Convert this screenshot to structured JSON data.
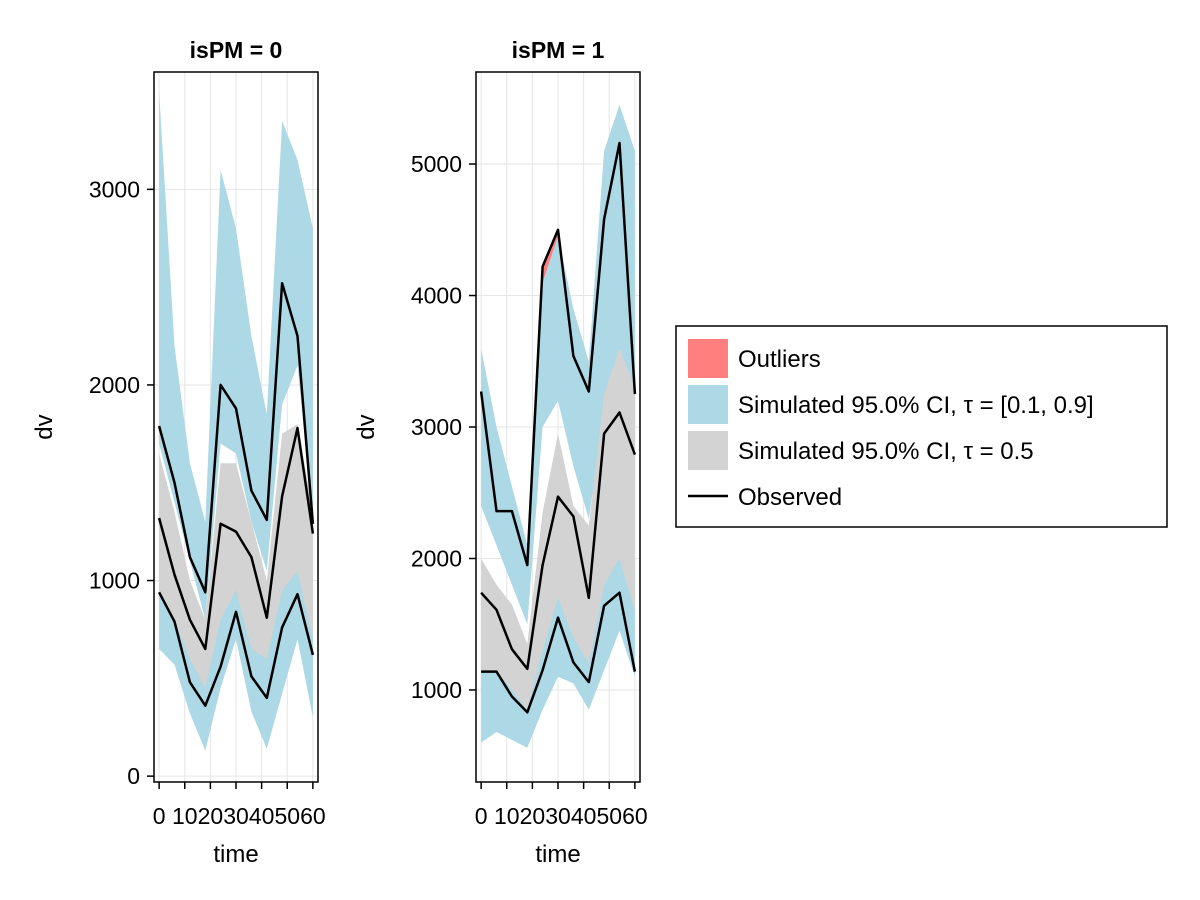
{
  "colors": {
    "outliers": "#ff7f7f",
    "ci_outer": "#add8e6",
    "ci_median": "#d3d3d3",
    "observed": "#000000"
  },
  "legend": {
    "outliers": "Outliers",
    "ci_outer": "Simulated 95.0% CI, τ = [0.1, 0.9]",
    "ci_median": "Simulated 95.0% CI, τ = 0.5",
    "observed": "Observed"
  },
  "chart_data": [
    {
      "type": "area",
      "title": "isPM = 0",
      "xlabel": "time",
      "ylabel": "dv",
      "xlim": [
        -2,
        62
      ],
      "ylim": [
        -30,
        3600
      ],
      "xticks": [
        0,
        10,
        20,
        30,
        40,
        50,
        60
      ],
      "xtick_labels": [
        "0",
        "10",
        "20",
        "30",
        "40",
        "50",
        "60"
      ],
      "yticks": [
        0,
        1000,
        2000,
        3000
      ],
      "ytick_labels": [
        "0",
        "1000",
        "2000",
        "3000"
      ],
      "x": [
        0,
        6,
        12,
        18,
        24,
        30,
        36,
        42,
        48,
        54,
        60
      ],
      "ci_outer": {
        "q10_lower": [
          650,
          570,
          320,
          130,
          450,
          700,
          330,
          140,
          420,
          700,
          300
        ],
        "q10_upper": [
          1250,
          1000,
          750,
          650,
          1000,
          1150,
          900,
          650,
          1000,
          1200,
          900
        ],
        "q90_lower": [
          1700,
          1400,
          1100,
          800,
          1700,
          1650,
          1300,
          1050,
          1900,
          2100,
          1300
        ],
        "q90_upper": [
          3500,
          2200,
          1600,
          1300,
          3100,
          2800,
          2250,
          1850,
          3350,
          3150,
          2800
        ]
      },
      "ci_median": {
        "lower": [
          950,
          800,
          600,
          450,
          800,
          950,
          650,
          600,
          950,
          1050,
          700
        ],
        "upper": [
          1650,
          1350,
          1000,
          800,
          1600,
          1600,
          1300,
          1000,
          1750,
          1800,
          1350
        ]
      },
      "observed": {
        "q10": [
          940,
          790,
          480,
          360,
          560,
          840,
          510,
          400,
          760,
          930,
          620
        ],
        "q50": [
          1320,
          1030,
          800,
          650,
          1290,
          1250,
          1120,
          810,
          1430,
          1780,
          1240
        ],
        "q90": [
          1790,
          1500,
          1120,
          940,
          2000,
          1880,
          1460,
          1310,
          2520,
          2250,
          1290
        ]
      },
      "outliers": []
    },
    {
      "type": "area",
      "title": "isPM = 1",
      "xlabel": "time",
      "ylabel": "dv",
      "xlim": [
        -2,
        62
      ],
      "ylim": [
        300,
        5700
      ],
      "xticks": [
        0,
        10,
        20,
        30,
        40,
        50,
        60
      ],
      "xtick_labels": [
        "0",
        "10",
        "20",
        "30",
        "40",
        "50",
        "60"
      ],
      "yticks": [
        1000,
        2000,
        3000,
        4000,
        5000
      ],
      "ytick_labels": [
        "1000",
        "2000",
        "3000",
        "4000",
        "5000"
      ],
      "x": [
        0,
        6,
        12,
        18,
        24,
        30,
        36,
        42,
        48,
        54,
        60
      ],
      "ci_outer": {
        "q10_lower": [
          600,
          680,
          620,
          560,
          850,
          1100,
          1050,
          850,
          1150,
          1450,
          1100
        ],
        "q10_upper": [
          1800,
          1600,
          1400,
          1200,
          1600,
          2150,
          1800,
          1550,
          2000,
          2350,
          1900
        ],
        "q90_lower": [
          2400,
          2100,
          1800,
          1500,
          3000,
          3200,
          2700,
          2300,
          3100,
          3300,
          2600
        ],
        "q90_upper": [
          3600,
          3000,
          2550,
          2100,
          4100,
          4450,
          3900,
          3500,
          5100,
          5450,
          5100
        ]
      },
      "ci_median": {
        "lower": [
          1150,
          1150,
          1000,
          850,
          1300,
          1700,
          1400,
          1200,
          1800,
          2000,
          1600
        ],
        "upper": [
          2000,
          1800,
          1650,
          1350,
          2350,
          2950,
          2400,
          2250,
          3250,
          3600,
          3300
        ]
      },
      "observed": {
        "q10": [
          1140,
          1140,
          950,
          830,
          1150,
          1550,
          1210,
          1060,
          1640,
          1740,
          1140
        ],
        "q50": [
          1740,
          1610,
          1310,
          1160,
          1950,
          2470,
          2320,
          1700,
          2950,
          3110,
          2790
        ],
        "q90": [
          3270,
          2360,
          2360,
          1950,
          4220,
          4500,
          3540,
          3270,
          4580,
          5160,
          3250
        ]
      },
      "outliers": [
        {
          "x": [
            24,
            30
          ],
          "lower": [
            4100,
            4450
          ],
          "upper": [
            4220,
            4500
          ]
        }
      ]
    }
  ]
}
